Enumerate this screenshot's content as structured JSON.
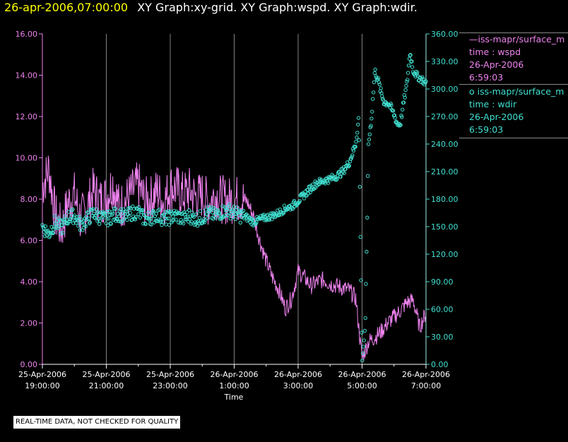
{
  "title": {
    "date": "26-apr-2006,07:00:00",
    "graphs": "XY Graph:xy-grid.  XY Graph:wspd.  XY Graph:wdir."
  },
  "legend": {
    "wspd": {
      "name": "—iss-mapr/surface_m",
      "line2": "time : wspd",
      "line3": "26-Apr-2006",
      "line4": "6:59:03"
    },
    "wdir": {
      "name": "o  iss-mapr/surface_m",
      "line2": "time : wdir",
      "line3": "26-Apr-2006",
      "line4": "6:59:03"
    }
  },
  "footer_note": "REAL-TIME DATA, NOT CHECKED FOR QUALITY",
  "colors": {
    "wspd": "#ee82ee",
    "wdir": "#40e0d0",
    "grid": "#ffffff",
    "title_date": "#ffff00"
  },
  "chart_data": {
    "type": "line",
    "xlabel": "Time",
    "x_range_hours": [
      -5.0,
      7.0
    ],
    "x_ticks": [
      {
        "hour": -5,
        "date": "25-Apr-2006",
        "time": "19:00:00"
      },
      {
        "hour": -3,
        "date": "25-Apr-2006",
        "time": "21:00:00"
      },
      {
        "hour": -1,
        "date": "25-Apr-2006",
        "time": "23:00:00"
      },
      {
        "hour": 1,
        "date": "26-Apr-2006",
        "time": "1:00:00"
      },
      {
        "hour": 3,
        "date": "26-Apr-2006",
        "time": "3:00:00"
      },
      {
        "hour": 5,
        "date": "26-Apr-2006",
        "time": "5:00:00"
      },
      {
        "hour": 7,
        "date": "26-Apr-2006",
        "time": "7:00:00"
      }
    ],
    "y_left": {
      "range": [
        0,
        16
      ],
      "ticks": [
        "0.00",
        "2.00",
        "4.00",
        "6.00",
        "8.00",
        "10.00",
        "12.00",
        "14.00",
        "16.00"
      ]
    },
    "y_right": {
      "range": [
        0,
        360
      ],
      "ticks": [
        "0.00",
        "30.00",
        "60.00",
        "90.00",
        "120.00",
        "150.00",
        "180.00",
        "210.00",
        "240.00",
        "270.00",
        "300.00",
        "330.00",
        "360.00"
      ]
    },
    "series": [
      {
        "key": "wspd",
        "axis": "left",
        "style": "line",
        "x": [
          -5.0,
          -4.8,
          -4.6,
          -4.4,
          -4.2,
          -4.0,
          -3.8,
          -3.6,
          -3.4,
          -3.2,
          -3.0,
          -2.8,
          -2.6,
          -2.4,
          -2.2,
          -2.0,
          -1.8,
          -1.6,
          -1.4,
          -1.2,
          -1.0,
          -0.8,
          -0.6,
          -0.4,
          -0.2,
          0.0,
          0.2,
          0.4,
          0.6,
          0.8,
          1.0,
          1.2,
          1.4,
          1.6,
          1.8,
          2.0,
          2.2,
          2.4,
          2.6,
          2.8,
          3.0,
          3.2,
          3.4,
          3.6,
          3.8,
          4.0,
          4.2,
          4.4,
          4.6,
          4.8,
          5.0,
          5.2,
          5.4,
          5.6,
          5.8,
          6.0,
          6.2,
          6.4,
          6.6,
          6.8,
          7.0
        ],
        "y": [
          8.6,
          9.5,
          7.2,
          6.5,
          7.8,
          8.2,
          7.0,
          7.6,
          8.4,
          7.9,
          8.1,
          8.8,
          7.6,
          7.9,
          8.3,
          8.7,
          7.9,
          8.0,
          8.4,
          7.8,
          8.6,
          8.5,
          8.2,
          8.4,
          8.1,
          8.2,
          7.8,
          8.2,
          8.0,
          7.9,
          8.0,
          8.0,
          7.9,
          7.2,
          6.0,
          5.0,
          4.2,
          3.6,
          2.7,
          3.2,
          4.5,
          4.2,
          3.8,
          4.0,
          4.1,
          3.9,
          3.8,
          3.7,
          3.6,
          3.2,
          0.3,
          1.1,
          1.3,
          1.6,
          2.0,
          2.3,
          2.6,
          3.0,
          3.1,
          1.8,
          2.5
        ],
        "noise": 1.2
      },
      {
        "key": "wdir",
        "axis": "right",
        "style": "markers",
        "x": [
          -5.0,
          -4.8,
          -4.6,
          -4.4,
          -4.2,
          -4.0,
          -3.8,
          -3.6,
          -3.4,
          -3.2,
          -3.0,
          -2.8,
          -2.6,
          -2.4,
          -2.2,
          -2.0,
          -1.8,
          -1.6,
          -1.4,
          -1.2,
          -1.0,
          -0.8,
          -0.6,
          -0.4,
          -0.2,
          0.0,
          0.2,
          0.4,
          0.6,
          0.8,
          1.0,
          1.2,
          1.4,
          1.6,
          1.8,
          2.0,
          2.2,
          2.4,
          2.6,
          2.8,
          3.0,
          3.2,
          3.4,
          3.6,
          3.8,
          4.0,
          4.2,
          4.4,
          4.6,
          4.8,
          4.9,
          5.0,
          5.1,
          5.2,
          5.3,
          5.4,
          5.5,
          5.6,
          5.7,
          5.8,
          5.9,
          6.0,
          6.1,
          6.2,
          6.3,
          6.4,
          6.5,
          6.6,
          6.7,
          6.8,
          6.9,
          7.0
        ],
        "y": [
          150,
          142,
          155,
          148,
          160,
          162,
          152,
          158,
          165,
          160,
          158,
          162,
          164,
          160,
          165,
          166,
          158,
          160,
          163,
          158,
          160,
          162,
          158,
          162,
          158,
          160,
          165,
          162,
          166,
          168,
          165,
          162,
          160,
          155,
          158,
          160,
          162,
          165,
          170,
          172,
          178,
          185,
          192,
          198,
          200,
          202,
          205,
          210,
          220,
          240,
          270,
          3,
          40,
          240,
          270,
          320,
          310,
          295,
          285,
          285,
          280,
          272,
          262,
          262,
          285,
          305,
          340,
          320,
          315,
          312,
          310,
          305
        ],
        "noise": 8
      }
    ]
  }
}
